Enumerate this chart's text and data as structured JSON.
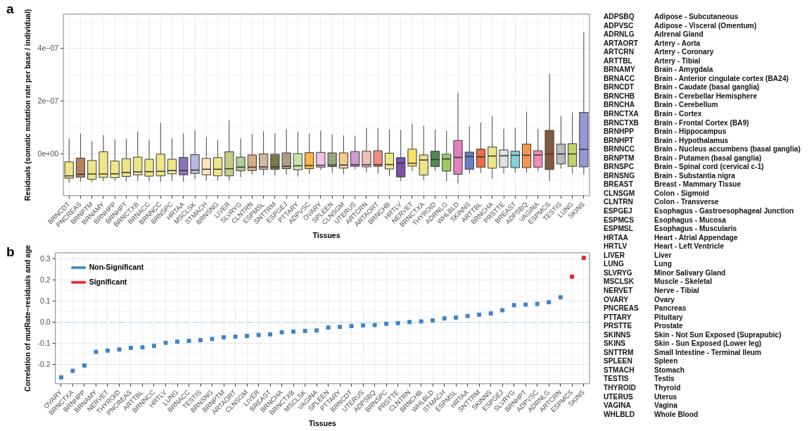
{
  "chart_data": [
    {
      "type": "box",
      "title": "a",
      "xlabel": "Tissues",
      "ylabel": "Residuals (somatic mutation rate per base / individual)",
      "grid": true,
      "legend": false,
      "categories": [
        "BRNCDT",
        "PNCREAS",
        "BRNPTM",
        "BRNAMY",
        "BRNHPP",
        "BRNHPT",
        "BRNCTXB",
        "BRNACC",
        "BRNNCC",
        "BRNSPC",
        "HRTAA",
        "MSCLSK",
        "STMACH",
        "BRNSNG",
        "LIVER",
        "SLVRYG",
        "CLNTRN",
        "ESPMSL",
        "SNTTRM",
        "ESPGEJ",
        "PTTARY",
        "ADPVSC",
        "OVARY",
        "SPLEEN",
        "CLNSGM",
        "UTERUS",
        "ARTCRN",
        "ARTAORT",
        "BRNCHB",
        "HRTLV",
        "NERVET",
        "BRNCTXA",
        "THYROID",
        "ADRNLG",
        "WHLBLD",
        "SKINNS",
        "ARTTBL",
        "BRNCHA",
        "PRSTTE",
        "BREAST",
        "ADPSBQ",
        "VAGINA",
        "ESPMCS",
        "TESTIS",
        "LUNG",
        "SKINS"
      ],
      "colors": [
        "#eee685",
        "#b5835a",
        "#eee685",
        "#eee685",
        "#eee685",
        "#eee685",
        "#eee685",
        "#eee685",
        "#eee685",
        "#eee685",
        "#8b74bd",
        "#bab7e0",
        "#ffe3b3",
        "#eee685",
        "#c6cc85",
        "#b0cc99",
        "#d9ad86",
        "#cdb79e",
        "#7a7a47",
        "#b09c85",
        "#c8e6a6",
        "#ffb546",
        "#f0c4e4",
        "#99a57a",
        "#f5c98b",
        "#d49ad0",
        "#f5c0b5",
        "#f08c7f",
        "#eee685",
        "#7a52a6",
        "#fde168",
        "#eee685",
        "#4f8a49",
        "#9cc965",
        "#e081be",
        "#6b7cc6",
        "#ef6a47",
        "#eee685",
        "#e0e0e0",
        "#86d1d5",
        "#f79650",
        "#f58cb8",
        "#845a3e",
        "#bbbbbb",
        "#bed36b",
        "#9499d4"
      ],
      "boxes": [
        {
          "low": -1.08e-07,
          "q1": -9.1e-08,
          "median": -8.2e-08,
          "q3": -2.9e-08,
          "high": 5.9e-08
        },
        {
          "low": -1.03e-07,
          "q1": -8.7e-08,
          "median": -7.6e-08,
          "q3": -1.5e-08,
          "high": 7.8e-08
        },
        {
          "low": -1.06e-07,
          "q1": -9.5e-08,
          "median": -7.5e-08,
          "q3": -2.4e-08,
          "high": 4.9e-08
        },
        {
          "low": -1.01e-07,
          "q1": -8.8e-08,
          "median": -7.5e-08,
          "q3": 9e-09,
          "high": 7.2e-08
        },
        {
          "low": -1.01e-07,
          "q1": -8.9e-08,
          "median": -7.4e-08,
          "q3": -2.6e-08,
          "high": 5.6e-08
        },
        {
          "low": -1.03e-07,
          "q1": -8.4e-08,
          "median": -6.9e-08,
          "q3": -1.7e-08,
          "high": 5.9e-08
        },
        {
          "low": -1.01e-07,
          "q1": -7.8e-08,
          "median": -6.7e-08,
          "q3": -1.1e-08,
          "high": 8.6e-08
        },
        {
          "low": -1.03e-07,
          "q1": -8.3e-08,
          "median": -6.6e-08,
          "q3": -1.9e-08,
          "high": 5.5e-08
        },
        {
          "low": -1.05e-07,
          "q1": -8.2e-08,
          "median": -6.5e-08,
          "q3": 0,
          "high": 1.19e-07
        },
        {
          "low": -1.01e-07,
          "q1": -7.4e-08,
          "median": -6.2e-08,
          "q3": -1.9e-08,
          "high": 6e-08
        },
        {
          "low": -1.05e-07,
          "q1": -7.8e-08,
          "median": -6.2e-08,
          "q3": -1.2e-08,
          "high": 7.9e-08
        },
        {
          "low": -9.5e-08,
          "q1": -7.3e-08,
          "median": -6e-08,
          "q3": -2e-09,
          "high": 9.1e-08
        },
        {
          "low": -1e-07,
          "q1": -7.8e-08,
          "median": -5.7e-08,
          "q3": -1.6e-08,
          "high": 6.5e-08
        },
        {
          "low": -1e-07,
          "q1": -8.2e-08,
          "median": -5.7e-08,
          "q3": -1.3e-08,
          "high": 5.2e-08
        },
        {
          "low": -1e-07,
          "q1": -8.2e-08,
          "median": -5.5e-08,
          "q3": 9e-09,
          "high": 1.29e-07
        },
        {
          "low": -8.7e-08,
          "q1": -6.3e-08,
          "median": -4.9e-08,
          "q3": -1.1e-08,
          "high": 5.9e-08
        },
        {
          "low": -7.7e-08,
          "q1": -6.2e-08,
          "median": -4.9e-08,
          "q3": -3e-09,
          "high": 7.6e-08
        },
        {
          "low": -8e-08,
          "q1": -5.7e-08,
          "median": -4.8e-08,
          "q3": 1e-09,
          "high": 8.7e-08
        },
        {
          "low": -8e-08,
          "q1": -5.7e-08,
          "median": -4.8e-08,
          "q3": 0,
          "high": 8e-08
        },
        {
          "low": -7.7e-08,
          "q1": -5.5e-08,
          "median": -4.6e-08,
          "q3": 5e-09,
          "high": 9.4e-08
        },
        {
          "low": -8.4e-08,
          "q1": -5.9e-08,
          "median": -4.4e-08,
          "q3": 2e-09,
          "high": 8.4e-08
        },
        {
          "low": -7.5e-08,
          "q1": -5.5e-08,
          "median": -4.3e-08,
          "q3": 6e-09,
          "high": 7.8e-08
        },
        {
          "low": -6e-08,
          "q1": -4.9e-08,
          "median": -4.2e-08,
          "q3": 7e-09,
          "high": 8.9e-08
        },
        {
          "low": -7.1e-08,
          "q1": -4.7e-08,
          "median": -4.1e-08,
          "q3": 5e-09,
          "high": 7.5e-08
        },
        {
          "low": -7.5e-08,
          "q1": -5.3e-08,
          "median": -4.1e-08,
          "q3": 5e-09,
          "high": 7.1e-08
        },
        {
          "low": -5.7e-08,
          "q1": -4.6e-08,
          "median": -4e-08,
          "q3": 1e-08,
          "high": 7e-08
        },
        {
          "low": -6.9e-08,
          "q1": -4.8e-08,
          "median": -4e-08,
          "q3": 1.1e-08,
          "high": 9.9e-08
        },
        {
          "low": -7.3e-08,
          "q1": -4.6e-08,
          "median": -4e-08,
          "q3": 1.3e-08,
          "high": 9.8e-08
        },
        {
          "low": -8.3e-08,
          "q1": -5.6e-08,
          "median": -3.9e-08,
          "q3": 4e-09,
          "high": 9.3e-08
        },
        {
          "low": -1.01e-07,
          "q1": -8.6e-08,
          "median": -3.4e-08,
          "q3": -1.3e-08,
          "high": 9.2e-08
        },
        {
          "low": -6.4e-08,
          "q1": -4.5e-08,
          "median": -3.4e-08,
          "q3": 1.9e-08,
          "high": 1.15e-07
        },
        {
          "low": -9.8e-08,
          "q1": -7.9e-08,
          "median": -2.2e-08,
          "q3": -3e-09,
          "high": 1.07e-07
        },
        {
          "low": -6.3e-08,
          "q1": -4.7e-08,
          "median": -2e-08,
          "q3": 1.1e-08,
          "high": 9.3e-08
        },
        {
          "low": -1.03e-07,
          "q1": -6.4e-08,
          "median": -1.8e-08,
          "q3": 0,
          "high": 8.8e-08
        },
        {
          "low": -1.1e-07,
          "q1": -7.6e-08,
          "median": -1.2e-08,
          "q3": 5.2e-08,
          "high": 2.32e-07
        },
        {
          "low": -7.4e-08,
          "q1": -5.7e-08,
          "median": -9e-09,
          "q3": 8e-09,
          "high": 1.05e-07
        },
        {
          "low": -7.1e-08,
          "q1": -4.9e-08,
          "median": -1e-08,
          "q3": 1.9e-08,
          "high": 1.2e-07
        },
        {
          "low": -9.3e-08,
          "q1": -5.3e-08,
          "median": -7e-09,
          "q3": 2.7e-08,
          "high": 1.43e-07
        },
        {
          "low": -7.3e-08,
          "q1": -4.9e-08,
          "median": -6e-09,
          "q3": 1.6e-08,
          "high": 9.6e-08
        },
        {
          "low": -7e-08,
          "q1": -5.1e-08,
          "median": -4e-09,
          "q3": 1.1e-08,
          "high": 1e-07
        },
        {
          "low": -6.9e-08,
          "q1": -5.1e-08,
          "median": -4e-09,
          "q3": 3.8e-08,
          "high": 1.61e-07
        },
        {
          "low": -6.3e-08,
          "q1": -4.9e-08,
          "median": -3e-09,
          "q3": 1.3e-08,
          "high": 9.6e-08
        },
        {
          "low": -1.01e-07,
          "q1": -5.8e-08,
          "median": 1e-09,
          "q3": 9e-08,
          "high": 3.03e-07
        },
        {
          "low": -5.5e-08,
          "q1": -3.7e-08,
          "median": 1e-09,
          "q3": 3.8e-08,
          "high": 1.44e-07
        },
        {
          "low": -7.4e-08,
          "q1": -4.6e-08,
          "median": 1e-09,
          "q3": 4e-08,
          "high": 1.58e-07
        },
        {
          "low": -7.7e-08,
          "q1": -4.8e-08,
          "median": 1.8e-08,
          "q3": 1.58e-07,
          "high": 4.61e-07
        }
      ],
      "ylim": [
        -1.57e-07,
        5.3e-07
      ],
      "yticks": [
        {
          "value": -1e-07,
          "label": null
        },
        {
          "value": 0,
          "label": "0e+00"
        },
        {
          "value": 1e-07,
          "label": null
        },
        {
          "value": 2e-07,
          "label": "2e−07"
        },
        {
          "value": 3e-07,
          "label": null
        },
        {
          "value": 4e-07,
          "label": "4e−07"
        },
        {
          "value": 5e-07,
          "label": null
        }
      ]
    },
    {
      "type": "scatter",
      "title": "b",
      "xlabel": "Tissues",
      "ylabel": "Correlation of mutRate–residuals and age",
      "grid": true,
      "legend": "top left",
      "marker": "square",
      "categories": [
        "OVARY",
        "BRNCTXA",
        "BRNHPP",
        "BRNAMY",
        "NERVET",
        "THYROID",
        "PNCREAS",
        "ARTTBL",
        "BRNNCC",
        "HRTLV",
        "LUNG",
        "BRNACC",
        "TESTIS",
        "BRNSNG",
        "BRNPTM",
        "ARTAORT",
        "CLNSGM",
        "LIVER",
        "BREAST",
        "BRNCHA",
        "BRNCTXB",
        "MSCLSK",
        "VAGINA",
        "SPLEEN",
        "PTTARY",
        "BRNCDT",
        "UTERUS",
        "ADPSBQ",
        "BRNSPC",
        "PRSTTE",
        "CLNTRN",
        "BRNCHB",
        "WHLBLD",
        "STMACH",
        "ESPMSL",
        "HRTAA",
        "SNTTRM",
        "SKINNS",
        "ESPGEJ",
        "SLVRYG",
        "BRNHPT",
        "ADPVSC",
        "ADRNLG",
        "ARTCRN",
        "ESPMCS",
        "SKINS"
      ],
      "series": [
        {
          "name": "Non-Significant",
          "color": "#3d85c6",
          "values": [
            -0.26,
            -0.229,
            -0.204,
            -0.139,
            -0.133,
            -0.128,
            -0.12,
            -0.118,
            -0.111,
            -0.096,
            -0.091,
            -0.087,
            -0.084,
            -0.078,
            -0.07,
            -0.067,
            -0.064,
            -0.059,
            -0.056,
            -0.046,
            -0.043,
            -0.04,
            -0.038,
            -0.024,
            -0.021,
            -0.017,
            -0.014,
            -0.012,
            -0.006,
            -0.003,
            0.002,
            0.005,
            0.01,
            0.019,
            0.023,
            0.031,
            0.037,
            0.043,
            0.058,
            0.082,
            0.085,
            0.088,
            0.096,
            0.119,
            null,
            null
          ]
        },
        {
          "name": "Significant",
          "color": "#e8242a",
          "values": [
            null,
            null,
            null,
            null,
            null,
            null,
            null,
            null,
            null,
            null,
            null,
            null,
            null,
            null,
            null,
            null,
            null,
            null,
            null,
            null,
            null,
            null,
            null,
            null,
            null,
            null,
            null,
            null,
            null,
            null,
            null,
            null,
            null,
            null,
            null,
            null,
            null,
            null,
            null,
            null,
            null,
            null,
            null,
            null,
            0.217,
            0.306
          ]
        }
      ],
      "ref_lines": [
        {
          "axis": "y",
          "value": 0,
          "color": "#b3dced",
          "line_style": "dashed"
        }
      ],
      "ylim": [
        -0.29,
        0.33
      ],
      "yticks": [
        {
          "value": -0.25,
          "label": null
        },
        {
          "value": -0.2,
          "label": "-0.2"
        },
        {
          "value": -0.15,
          "label": null
        },
        {
          "value": -0.1,
          "label": "-0.1"
        },
        {
          "value": -0.05,
          "label": null
        },
        {
          "value": 0,
          "label": "0.0"
        },
        {
          "value": 0.05,
          "label": null
        },
        {
          "value": 0.1,
          "label": "0.1"
        },
        {
          "value": 0.15,
          "label": null
        },
        {
          "value": 0.2,
          "label": "0.2"
        },
        {
          "value": 0.25,
          "label": null
        },
        {
          "value": 0.3,
          "label": "0.3"
        }
      ]
    },
    {
      "type": "other",
      "annotations": [
        "ADPSBQ",
        "Adipose - Subcutaneous",
        "ADPVSC",
        "Adipose - Visceral (Omentum)",
        "ADRNLG",
        "Adrenal Gland",
        "ARTAORT",
        "Artery - Aorta",
        "ARTCRN",
        "Artery - Coronary",
        "ARTTBL",
        "Artery - Tibial",
        "BRNAMY",
        "Brain - Amygdala",
        "BRNACC",
        "Brain - Anterior cingulate cortex (BA24)",
        "BRNCDT",
        "Brain - Caudate (basal ganglia)",
        "BRNCHB",
        "Brain - Cerebellar Hemisphere",
        "BRNCHA",
        "Brain - Cerebellum",
        "BRNCTXA",
        "Brain - Cortex",
        "BRNCTXB",
        "Brain - Frontal Cortex (BA9)",
        "BRNHPP",
        "Brain - Hippocampus",
        "BRNHPT",
        "Brain - Hypothalamus",
        "BRNNCC",
        "Brain - Nucleus accumbens (basal ganglia)",
        "BRNPTM",
        "Brain - Putamen (basal ganglia)",
        "BRNSPC",
        "Brain - Spinal cord (cervical c-1)",
        "BRNSNG",
        "Brain - Substantia nigra",
        "BREAST",
        "Breast - Mammary Tissue",
        "CLNSGM",
        "Colon - Sigmoid",
        "CLNTRN",
        "Colon - Transverse",
        "ESPGEJ",
        "Esophagus - Gastroesophageal Junction",
        "ESPMCS",
        "Esophagus - Mucosa",
        "ESPMSL",
        "Esophagus - Muscularis",
        "HRTAA",
        "Heart - Atrial Appendage",
        "HRTLV",
        "Heart - Left Ventricle",
        "LIVER",
        "Liver",
        "LUNG",
        "Lung",
        "SLVRYG",
        "Minor Salivary Gland",
        "MSCLSK",
        "Muscle - Skeletal",
        "NERVET",
        "Nerve - Tibial",
        "OVARY",
        "Ovary",
        "PNCREAS",
        "Pancreas",
        "PTTARY",
        "Pituitary",
        "PRSTTE",
        "Prostate",
        "SKINNS",
        "Skin - Not Sun Exposed (Suprapubic)",
        "SKINS",
        "Skin - Sun Exposed (Lower leg)",
        "SNTTRM",
        "Small Intestine - Terminal Ileum",
        "SPLEEN",
        "Spleen",
        "STMACH",
        "Stomach",
        "TESTIS",
        "Testis",
        "THYROID",
        "Thyroid",
        "UTERUS",
        "Uterus",
        "VAGINA",
        "Vagina",
        "WHLBLD",
        "Whole Blood"
      ]
    }
  ]
}
